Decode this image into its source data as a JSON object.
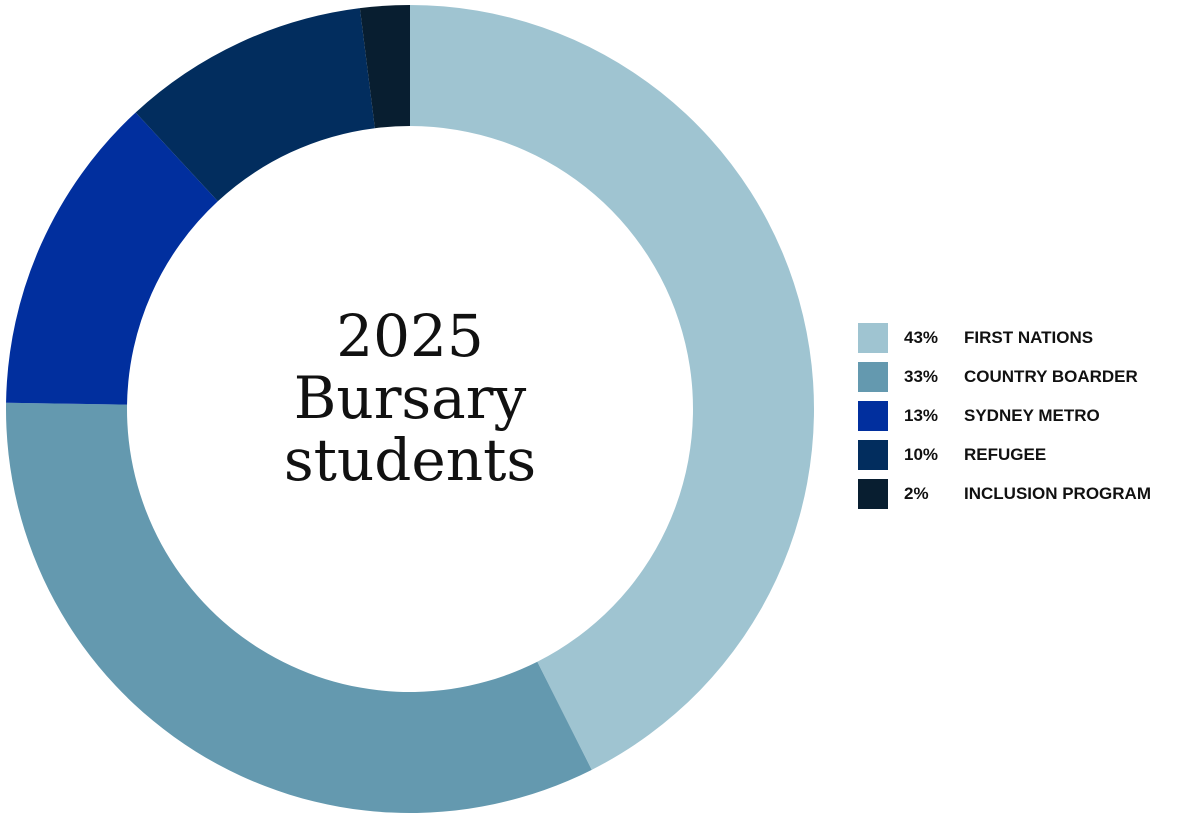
{
  "chart_data": {
    "type": "pie",
    "variant": "donut",
    "title": [
      "2025",
      "Bursary",
      "students"
    ],
    "legend_position": "right",
    "slices": [
      {
        "label": "FIRST NATIONS",
        "percent_label": "43%",
        "value": 43,
        "color": "#9fc4d1"
      },
      {
        "label": "COUNTRY BOARDER",
        "percent_label": "33%",
        "value": 33,
        "color": "#6499af"
      },
      {
        "label": "SYDNEY METRO",
        "percent_label": "13%",
        "value": 13,
        "color": "#012f9e"
      },
      {
        "label": "REFUGEE",
        "percent_label": "10%",
        "value": 10,
        "color": "#022d5e"
      },
      {
        "label": "INCLUSION PROGRAM",
        "percent_label": "2%",
        "value": 2,
        "color": "#081e30"
      }
    ]
  }
}
